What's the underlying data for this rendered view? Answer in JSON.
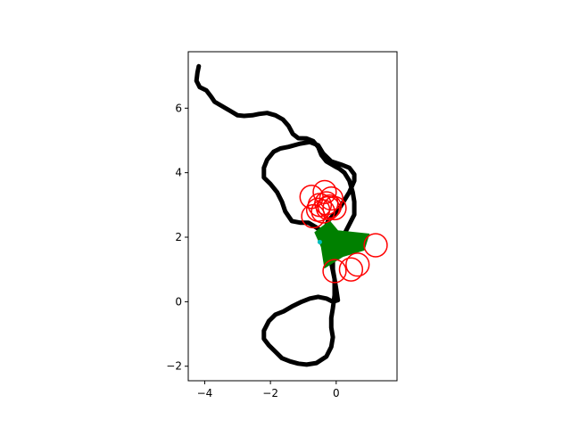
{
  "chart_data": {
    "type": "scatter",
    "title": "",
    "xlabel": "",
    "ylabel": "",
    "xlim": [
      -4.5,
      1.85
    ],
    "ylim": [
      -2.45,
      7.75
    ],
    "grid": false,
    "legend": "none",
    "x_ticks": [
      -4,
      -2,
      0
    ],
    "x_tick_labels": [
      "−4",
      "−2",
      "0"
    ],
    "y_ticks": [
      -2,
      0,
      2,
      4,
      6
    ],
    "y_tick_labels": [
      "−2",
      "0",
      "2",
      "4",
      "6"
    ],
    "colors": {
      "path": "#000000",
      "circles": "#ff0000",
      "polygon": "#008000",
      "marker": "#00bfbf"
    },
    "series": [
      {
        "kind": "trajectory",
        "color": "#000000",
        "points": [
          [
            -4.18,
            7.3
          ],
          [
            -4.22,
            7.1
          ],
          [
            -4.25,
            6.85
          ],
          [
            -4.15,
            6.65
          ],
          [
            -3.95,
            6.55
          ],
          [
            -3.8,
            6.35
          ],
          [
            -3.7,
            6.2
          ],
          [
            -3.45,
            6.05
          ],
          [
            -3.2,
            5.9
          ],
          [
            -3.0,
            5.78
          ],
          [
            -2.8,
            5.76
          ],
          [
            -2.55,
            5.78
          ],
          [
            -2.35,
            5.82
          ],
          [
            -2.1,
            5.85
          ],
          [
            -1.85,
            5.78
          ],
          [
            -1.62,
            5.65
          ],
          [
            -1.45,
            5.45
          ],
          [
            -1.32,
            5.2
          ],
          [
            -1.15,
            5.07
          ],
          [
            -0.9,
            5.06
          ],
          [
            -0.7,
            4.98
          ],
          [
            -0.55,
            4.8
          ],
          [
            -0.45,
            4.55
          ],
          [
            -0.3,
            4.35
          ],
          [
            -0.05,
            4.2
          ],
          [
            0.1,
            4.12
          ],
          [
            0.25,
            4.0
          ],
          [
            0.4,
            3.75
          ],
          [
            0.5,
            3.4
          ],
          [
            0.55,
            3.1
          ],
          [
            0.55,
            2.7
          ],
          [
            0.4,
            2.4
          ],
          [
            0.25,
            2.1
          ],
          [
            0.1,
            1.8
          ],
          [
            0.0,
            1.5
          ],
          [
            -0.1,
            1.25
          ],
          [
            -0.1,
            1.0
          ],
          [
            -0.05,
            0.7
          ],
          [
            0.0,
            0.4
          ],
          [
            0.05,
            0.05
          ],
          [
            -0.1,
            0.0
          ],
          [
            -0.3,
            0.1
          ],
          [
            -0.55,
            0.15
          ],
          [
            -0.8,
            0.1
          ],
          [
            -1.05,
            0.0
          ],
          [
            -1.35,
            -0.15
          ],
          [
            -1.6,
            -0.3
          ],
          [
            -1.85,
            -0.4
          ],
          [
            -2.05,
            -0.6
          ],
          [
            -2.2,
            -0.9
          ],
          [
            -2.2,
            -1.15
          ],
          [
            -2.05,
            -1.35
          ],
          [
            -1.85,
            -1.55
          ],
          [
            -1.65,
            -1.75
          ],
          [
            -1.4,
            -1.85
          ],
          [
            -1.15,
            -1.92
          ],
          [
            -0.9,
            -1.95
          ],
          [
            -0.6,
            -1.9
          ],
          [
            -0.3,
            -1.7
          ],
          [
            -0.15,
            -1.4
          ],
          [
            -0.1,
            -1.1
          ],
          [
            -0.15,
            -0.8
          ],
          [
            -0.15,
            -0.5
          ],
          [
            -0.1,
            -0.2
          ],
          [
            -0.05,
            0.2
          ],
          [
            -0.05,
            0.7
          ],
          [
            -0.15,
            1.2
          ],
          [
            -0.25,
            1.7
          ],
          [
            -0.35,
            2.2
          ],
          [
            -0.25,
            2.5
          ],
          [
            0.1,
            2.9
          ],
          [
            0.4,
            3.4
          ],
          [
            0.55,
            3.75
          ],
          [
            0.55,
            3.95
          ],
          [
            0.4,
            4.15
          ],
          [
            0.15,
            4.25
          ],
          [
            -0.15,
            4.35
          ],
          [
            -0.4,
            4.6
          ],
          [
            -0.55,
            4.85
          ],
          [
            -0.8,
            4.95
          ],
          [
            -1.1,
            4.9
          ],
          [
            -1.45,
            4.8
          ],
          [
            -1.7,
            4.75
          ],
          [
            -1.9,
            4.65
          ],
          [
            -2.1,
            4.4
          ],
          [
            -2.2,
            4.15
          ],
          [
            -2.2,
            3.85
          ],
          [
            -2.0,
            3.65
          ],
          [
            -1.8,
            3.4
          ],
          [
            -1.65,
            3.1
          ],
          [
            -1.55,
            2.8
          ],
          [
            -1.35,
            2.5
          ],
          [
            -1.1,
            2.45
          ],
          [
            -0.85,
            2.45
          ],
          [
            -0.6,
            2.3
          ],
          [
            -0.4,
            2.15
          ],
          [
            -0.3,
            2.0
          ]
        ]
      },
      {
        "kind": "circles",
        "color": "#ff0000",
        "radius": 0.35,
        "centers": [
          [
            -0.35,
            3.4
          ],
          [
            -0.3,
            3.05
          ],
          [
            -0.75,
            3.25
          ],
          [
            -0.5,
            3.0
          ],
          [
            -0.2,
            2.95
          ],
          [
            -0.55,
            2.85
          ],
          [
            -0.4,
            2.8
          ],
          [
            -0.05,
            2.9
          ],
          [
            -0.7,
            2.65
          ],
          [
            1.2,
            1.75
          ],
          [
            0.65,
            1.15
          ],
          [
            0.45,
            1.0
          ],
          [
            -0.05,
            0.95
          ],
          [
            -0.25,
            2.9
          ],
          [
            -0.15,
            3.2
          ]
        ]
      },
      {
        "kind": "polygon",
        "color": "#008000",
        "points": [
          [
            -0.65,
            2.15
          ],
          [
            -0.2,
            2.5
          ],
          [
            0.05,
            2.2
          ],
          [
            1.0,
            2.1
          ],
          [
            0.85,
            1.6
          ],
          [
            0.2,
            1.4
          ],
          [
            -0.35,
            1.05
          ],
          [
            -0.45,
            1.7
          ]
        ]
      },
      {
        "kind": "marker",
        "color": "#00bfbf",
        "points": [
          [
            -0.5,
            1.85
          ]
        ]
      }
    ]
  }
}
